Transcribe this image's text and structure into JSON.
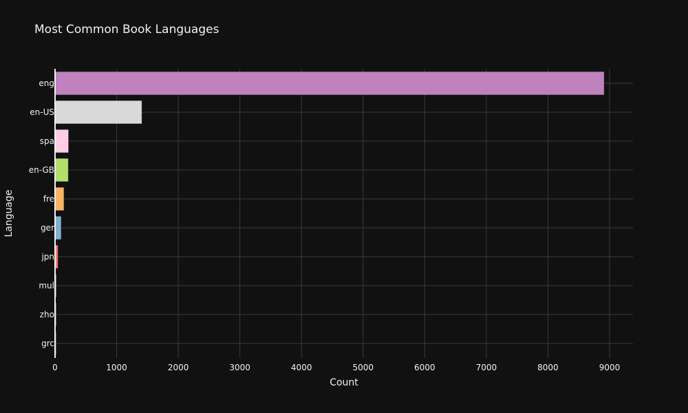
{
  "chart_data": {
    "type": "bar",
    "orientation": "horizontal",
    "title": "Most Common Book Languages",
    "xlabel": "Count",
    "ylabel": "Language",
    "xlim": [
      0,
      9380
    ],
    "xticks": [
      0,
      1000,
      2000,
      3000,
      4000,
      5000,
      6000,
      7000,
      8000,
      9000
    ],
    "grid": true,
    "categories": [
      "eng",
      "en-US",
      "spa",
      "en-GB",
      "fre",
      "ger",
      "jpn",
      "mul",
      "zho",
      "grc"
    ],
    "values": [
      8911,
      1408,
      218,
      214,
      144,
      99,
      46,
      19,
      14,
      11
    ],
    "colors": [
      "#bf82bf",
      "#d9d9d9",
      "#fccde5",
      "#b3de69",
      "#fdb462",
      "#80b1d3",
      "#fb8072",
      "#bebada",
      "#ffffb3",
      "#8dd3c7"
    ]
  },
  "colors": {
    "background": "#111111",
    "gridline": "#3a3a3a",
    "axis_line": "#f2f2f2",
    "text": "#f2f2f2"
  }
}
